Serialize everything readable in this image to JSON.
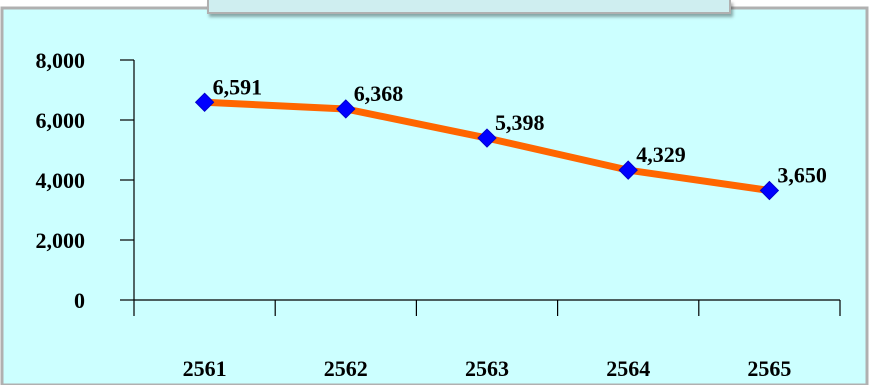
{
  "chart_data": {
    "type": "line",
    "categories": [
      "2561",
      "2562",
      "2563",
      "2564",
      "2565"
    ],
    "series": [
      {
        "values": [
          6591,
          6368,
          5398,
          4329,
          3650
        ]
      }
    ],
    "data_labels": [
      "6,591",
      "6,368",
      "5,398",
      "4,329",
      "3,650"
    ],
    "y_ticks": [
      0,
      2000,
      4000,
      6000,
      8000
    ],
    "y_tick_labels": [
      "0",
      "2,000",
      "4,000",
      "6,000",
      "8,000"
    ],
    "ylim": [
      0,
      8000
    ],
    "title": "",
    "xlabel": "",
    "ylabel": "",
    "grid": false,
    "legend": "none",
    "colors": {
      "line": "#ff6600",
      "marker": "#0000ff",
      "plot_background": "#ccffff",
      "frame": "#b0b0b0"
    }
  }
}
